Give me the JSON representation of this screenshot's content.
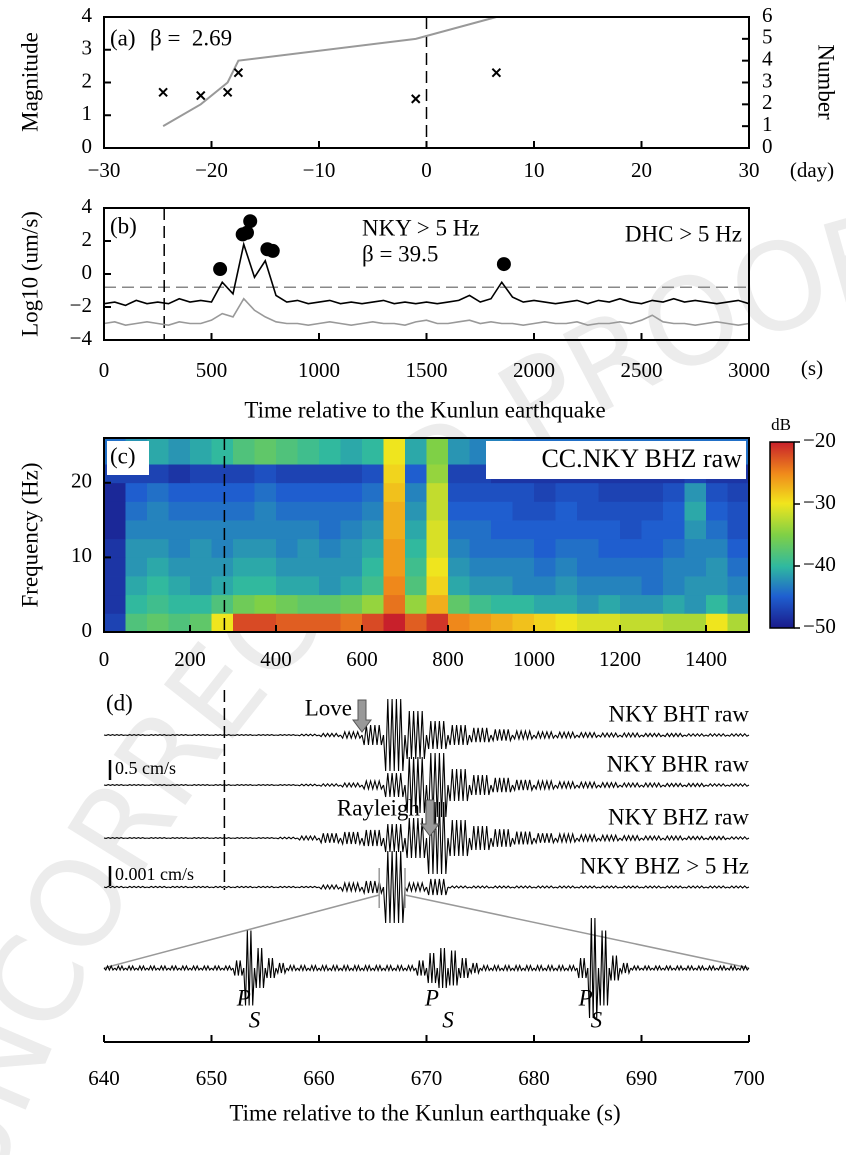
{
  "watermark": "UNCORRECTED PROOF",
  "chart_data": [
    {
      "type": "scatter",
      "label": "(a)",
      "annotation": "β =  2.69",
      "ylabel": "Magnitude",
      "y2label": "Number",
      "xunit": "(day)",
      "x": [
        -24.5,
        -21,
        -18.5,
        -17.5,
        -1,
        6.5
      ],
      "values": [
        1.7,
        1.6,
        1.7,
        2.3,
        1.5,
        2.3
      ],
      "color": "#000000",
      "cumulative": {
        "x": [
          -24.5,
          -21,
          -18.5,
          -17.5,
          -1,
          6.5
        ],
        "values": [
          1,
          2,
          3,
          4,
          5,
          6
        ],
        "axis": "y2",
        "color": "#999999"
      },
      "vline": 0,
      "xlim": [
        -30,
        30
      ],
      "xticks": [
        {
          "value": -30,
          "label": "−30"
        },
        {
          "value": -20,
          "label": "−20"
        },
        {
          "value": -10,
          "label": "−10"
        },
        0,
        10,
        20,
        30
      ],
      "ylim": [
        0,
        4
      ],
      "yticks": [
        0,
        1,
        2,
        3,
        4
      ],
      "y2lim": [
        0,
        6
      ],
      "y2ticks": [
        0,
        1,
        2,
        3,
        4,
        5,
        6
      ]
    },
    {
      "type": "line",
      "label": "(b)",
      "annotation": "β = 39.5",
      "ylabel": "Log10 (um/s)",
      "xunit": "(s)",
      "xlabel": "Time relative to the Kunlun earthquake",
      "x": [
        0,
        50,
        100,
        150,
        200,
        250,
        300,
        350,
        400,
        450,
        500,
        550,
        600,
        650,
        700,
        750,
        800,
        850,
        900,
        950,
        1000,
        1050,
        1100,
        1150,
        1200,
        1250,
        1300,
        1350,
        1400,
        1450,
        1500,
        1550,
        1600,
        1650,
        1700,
        1750,
        1800,
        1850,
        1900,
        1950,
        2000,
        2050,
        2100,
        2150,
        2200,
        2250,
        2300,
        2350,
        2400,
        2450,
        2500,
        2550,
        2600,
        2650,
        2700,
        2750,
        2800,
        2850,
        2900,
        2950,
        3000
      ],
      "series": [
        {
          "name": "NKY > 5 Hz",
          "color": "#000000",
          "values": [
            -1.8,
            -1.7,
            -1.9,
            -1.6,
            -1.8,
            -1.7,
            -1.8,
            -1.5,
            -1.7,
            -1.6,
            -1.7,
            -0.5,
            -1.2,
            1.8,
            -0.2,
            0.8,
            -1.3,
            -1.7,
            -1.6,
            -1.8,
            -1.7,
            -1.6,
            -1.8,
            -1.7,
            -1.8,
            -1.7,
            -1.6,
            -1.8,
            -1.7,
            -1.8,
            -1.7,
            -1.8,
            -1.7,
            -1.6,
            -1.3,
            -1.7,
            -1.5,
            -0.5,
            -1.4,
            -1.7,
            -1.6,
            -1.7,
            -1.8,
            -1.7,
            -1.6,
            -1.8,
            -1.6,
            -1.7,
            -1.5,
            -1.7,
            -1.8,
            -1.6,
            -1.7,
            -1.5,
            -1.7,
            -1.6,
            -1.7,
            -1.8,
            -1.7,
            -1.6,
            -1.8
          ]
        },
        {
          "name": "DHC > 5 Hz",
          "color": "#999999",
          "values": [
            -3.0,
            -2.9,
            -3.1,
            -3.0,
            -2.9,
            -3.0,
            -3.1,
            -2.9,
            -3.0,
            -3.0,
            -2.8,
            -2.4,
            -2.6,
            -1.5,
            -2.2,
            -2.6,
            -2.9,
            -3.0,
            -3.0,
            -3.1,
            -3.0,
            -2.9,
            -3.0,
            -3.1,
            -3.0,
            -2.9,
            -3.0,
            -3.0,
            -3.1,
            -2.9,
            -2.8,
            -3.0,
            -3.0,
            -2.9,
            -2.8,
            -3.0,
            -2.9,
            -3.0,
            -3.0,
            -3.1,
            -3.0,
            -2.9,
            -3.0,
            -3.0,
            -2.9,
            -3.1,
            -3.0,
            -3.0,
            -2.9,
            -3.0,
            -2.8,
            -2.5,
            -2.9,
            -3.0,
            -3.0,
            -3.1,
            -3.0,
            -2.9,
            -3.0,
            -3.1,
            -3.0
          ]
        }
      ],
      "events": {
        "x": [
          540,
          645,
          665,
          680,
          760,
          785,
          1860
        ],
        "values": [
          0.3,
          2.4,
          2.5,
          3.2,
          1.5,
          1.4,
          0.6
        ]
      },
      "hline": -0.8,
      "vline": 280,
      "xlim": [
        0,
        3000
      ],
      "xticks": [
        0,
        500,
        1000,
        1500,
        2000,
        2500,
        3000
      ],
      "ylim": [
        -4,
        4
      ],
      "yticks": [
        {
          "value": -4,
          "label": "−4"
        },
        {
          "value": -2,
          "label": "−2"
        },
        0,
        2,
        4
      ]
    },
    {
      "type": "heatmap",
      "label": "(c)",
      "title": "CC.NKY BHZ raw",
      "ylabel": "Frequency (Hz)",
      "cbar_label": "dB",
      "x_edges": [
        0,
        50,
        100,
        150,
        200,
        250,
        300,
        350,
        400,
        450,
        500,
        550,
        600,
        650,
        700,
        750,
        800,
        850,
        900,
        950,
        1000,
        1050,
        1100,
        1150,
        1200,
        1250,
        1300,
        1350,
        1400,
        1450,
        1500
      ],
      "y_edges": [
        0,
        2.5,
        5,
        7.5,
        10,
        12.5,
        15,
        17.5,
        20,
        22.5,
        26
      ],
      "z": [
        [
          -47,
          -38,
          -37,
          -38,
          -37,
          -30,
          -22,
          -22,
          -23,
          -23,
          -23,
          -24,
          -22,
          -20,
          -23,
          -21,
          -25,
          -26,
          -27,
          -28,
          -29,
          -30,
          -31,
          -31,
          -32,
          -32,
          -33,
          -33,
          -30,
          -33
        ],
        [
          -48,
          -40,
          -39,
          -40,
          -40,
          -38,
          -36,
          -35,
          -36,
          -37,
          -37,
          -36,
          -34,
          -24,
          -34,
          -27,
          -37,
          -39,
          -40,
          -40,
          -41,
          -41,
          -42,
          -41,
          -42,
          -42,
          -41,
          -42,
          -40,
          -42
        ],
        [
          -48,
          -41,
          -40,
          -41,
          -42,
          -41,
          -40,
          -40,
          -41,
          -41,
          -42,
          -41,
          -39,
          -25,
          -38,
          -29,
          -41,
          -42,
          -42,
          -43,
          -43,
          -42,
          -43,
          -43,
          -43,
          -44,
          -43,
          -42,
          -42,
          -43
        ],
        [
          -48,
          -42,
          -41,
          -42,
          -42,
          -42,
          -41,
          -41,
          -42,
          -42,
          -42,
          -42,
          -40,
          -26,
          -39,
          -30,
          -42,
          -43,
          -43,
          -43,
          -44,
          -43,
          -44,
          -44,
          -44,
          -44,
          -43,
          -43,
          -42,
          -44
        ],
        [
          -48,
          -42,
          -42,
          -43,
          -42,
          -43,
          -42,
          -42,
          -43,
          -42,
          -43,
          -42,
          -41,
          -26,
          -40,
          -31,
          -43,
          -44,
          -44,
          -44,
          -45,
          -44,
          -44,
          -45,
          -45,
          -45,
          -44,
          -43,
          -43,
          -45
        ],
        [
          -49,
          -43,
          -43,
          -43,
          -43,
          -43,
          -43,
          -43,
          -43,
          -43,
          -44,
          -43,
          -42,
          -27,
          -41,
          -31,
          -44,
          -44,
          -45,
          -45,
          -45,
          -45,
          -45,
          -45,
          -46,
          -45,
          -45,
          -42,
          -44,
          -46
        ],
        [
          -49,
          -44,
          -43,
          -44,
          -44,
          -44,
          -44,
          -43,
          -44,
          -44,
          -44,
          -44,
          -43,
          -27,
          -42,
          -32,
          -45,
          -45,
          -45,
          -46,
          -46,
          -45,
          -46,
          -46,
          -46,
          -46,
          -45,
          -41,
          -45,
          -46
        ],
        [
          -49,
          -45,
          -44,
          -45,
          -45,
          -45,
          -45,
          -44,
          -45,
          -45,
          -45,
          -45,
          -44,
          -28,
          -43,
          -32,
          -46,
          -46,
          -46,
          -46,
          -47,
          -46,
          -46,
          -47,
          -47,
          -47,
          -46,
          -42,
          -46,
          -47
        ],
        [
          -47,
          -47,
          -47,
          -48,
          -47,
          -47,
          -47,
          -46,
          -47,
          -47,
          -47,
          -47,
          -46,
          -29,
          -45,
          -34,
          -47,
          -47,
          -48,
          -48,
          -48,
          -48,
          -48,
          -48,
          -48,
          -48,
          -48,
          -47,
          -48,
          -48
        ],
        [
          -44,
          -42,
          -41,
          -42,
          -41,
          -40,
          -38,
          -37,
          -38,
          -39,
          -40,
          -41,
          -40,
          -30,
          -41,
          -35,
          -42,
          -43,
          -43,
          -44,
          -44,
          -44,
          -44,
          -44,
          -44,
          -44,
          -44,
          -44,
          -44,
          -44
        ]
      ],
      "clim": [
        -50,
        -20
      ],
      "cticks": [
        {
          "value": -20,
          "label": "−20"
        },
        {
          "value": -30,
          "label": "−30"
        },
        {
          "value": -40,
          "label": "−40"
        },
        {
          "value": -50,
          "label": "−50"
        }
      ],
      "vline": 280,
      "xlim": [
        0,
        1500
      ],
      "xticks": [
        0,
        200,
        400,
        600,
        800,
        1000,
        1200,
        1400
      ],
      "ylim": [
        0,
        26
      ],
      "yticks": [
        0,
        10,
        20
      ]
    },
    {
      "type": "waveform",
      "label": "(d)",
      "trace_xlim": [
        0,
        1500
      ],
      "vline": 280,
      "traces": [
        {
          "name": "NKY BHT raw",
          "values": [
            0.01,
            0.01,
            0.01,
            0.01,
            0.01,
            0.01,
            0.01,
            0.01,
            0.01,
            0.02,
            0.04,
            0.08,
            0.25,
            0.9,
            0.6,
            0.35,
            0.25,
            0.18,
            0.14,
            0.1,
            0.08,
            0.07,
            0.06,
            0.05,
            0.05,
            0.04,
            0.04,
            0.03,
            0.03,
            0.03
          ]
        },
        {
          "name": "NKY BHR raw",
          "values": [
            0.01,
            0.01,
            0.01,
            0.01,
            0.01,
            0.01,
            0.01,
            0.01,
            0.01,
            0.02,
            0.03,
            0.05,
            0.1,
            0.3,
            0.7,
            0.8,
            0.4,
            0.25,
            0.18,
            0.13,
            0.1,
            0.08,
            0.07,
            0.06,
            0.05,
            0.05,
            0.04,
            0.04,
            0.03,
            0.03
          ]
        },
        {
          "name": "NKY BHZ raw",
          "values": [
            0.01,
            0.01,
            0.01,
            0.01,
            0.01,
            0.01,
            0.01,
            0.01,
            0.02,
            0.05,
            0.12,
            0.15,
            0.2,
            0.35,
            0.5,
            0.9,
            0.45,
            0.3,
            0.22,
            0.16,
            0.12,
            0.1,
            0.08,
            0.07,
            0.06,
            0.05,
            0.05,
            0.04,
            0.04,
            0.03
          ]
        },
        {
          "name": "NKY BHZ > 5 Hz",
          "values": [
            3e-05,
            3e-05,
            3e-05,
            3e-05,
            3e-05,
            3e-05,
            3e-05,
            3e-05,
            3e-05,
            3e-05,
            0.0001,
            0.0002,
            0.0003,
            0.0018,
            0.0002,
            0.0004,
            5e-05,
            5e-05,
            5e-05,
            5e-05,
            5e-05,
            5e-05,
            5e-05,
            5e-05,
            5e-05,
            5e-05,
            5e-05,
            5e-05,
            5e-05,
            5e-05
          ]
        }
      ],
      "scale_bars": [
        {
          "value": 0.5,
          "label": "0.5 cm/s"
        },
        {
          "value": 0.001,
          "label": "0.001 cm/s"
        }
      ],
      "arrows": [
        {
          "label": "Love",
          "x": 600
        },
        {
          "label": "Rayleigh",
          "x": 758
        }
      ],
      "zoom": {
        "values": [
          8e-05,
          8e-05,
          8e-05,
          8e-05,
          8e-05,
          8e-05,
          8e-05,
          8e-05,
          8e-05,
          8e-05,
          8e-05,
          8e-05,
          0.0003,
          0.0015,
          0.0008,
          0.0004,
          0.0002,
          0.0001,
          0.0001,
          0.0001,
          0.0001,
          0.0001,
          0.0001,
          0.0001,
          0.0001,
          0.0001,
          0.0001,
          0.0001,
          0.0001,
          0.0003,
          0.0006,
          0.0008,
          0.0007,
          0.0004,
          0.0002,
          0.0001,
          0.0001,
          0.0001,
          0.0001,
          0.0001,
          0.0001,
          0.0001,
          0.0001,
          0.0001,
          0.0004,
          0.002,
          0.0015,
          0.0005,
          0.0002,
          8e-05,
          8e-05,
          8e-05,
          8e-05,
          8e-05,
          8e-05,
          8e-05,
          8e-05,
          8e-05,
          8e-05,
          8e-05
        ],
        "picks": [
          {
            "label": "P",
            "x": 653
          },
          {
            "label": "S",
            "x": 654
          },
          {
            "label": "P",
            "x": 670.5
          },
          {
            "label": "S",
            "x": 672
          },
          {
            "label": "P",
            "x": 684.8
          },
          {
            "label": "S",
            "x": 685.8
          }
        ]
      },
      "xlabel": "Time relative to the Kunlun earthquake (s)",
      "xlim": [
        640,
        700
      ],
      "xticks": [
        640,
        650,
        660,
        670,
        680,
        690,
        700
      ]
    }
  ]
}
